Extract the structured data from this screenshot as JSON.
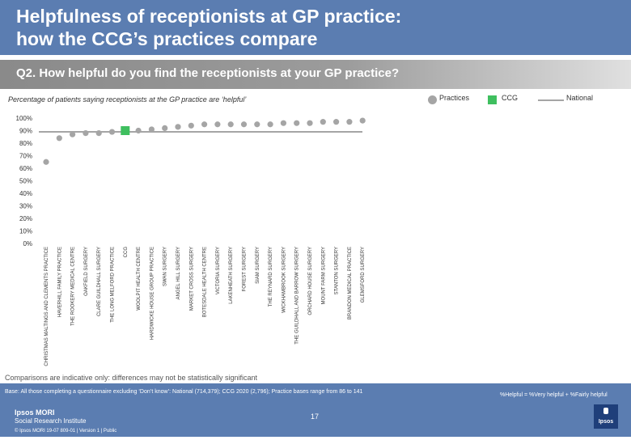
{
  "header": {
    "title_line1": "Helpfulness of receptionists at GP practice:",
    "title_line2": "how the CCG’s practices compare"
  },
  "question": "Q2. How helpful do you find the receptionists at your GP practice?",
  "subtitle": "Percentage of patients saying receptionists at the GP practice are ‘helpful’",
  "legend": {
    "practices": "Practices",
    "ccg": "CCG",
    "national": "National"
  },
  "colors": {
    "header": "#5b7db1",
    "practice_dot": "#a5a5a5",
    "ccg_marker": "#3fbf5f",
    "national_line": "#a5a5a5"
  },
  "chart_data": {
    "type": "scatter",
    "title": "Percentage of patients saying receptionists at the GP practice are ‘helpful’",
    "ylim": [
      0,
      100
    ],
    "yticks": [
      "100%",
      "90%",
      "80%",
      "70%",
      "60%",
      "50%",
      "40%",
      "30%",
      "20%",
      "10%",
      "0%"
    ],
    "national_value": 89,
    "categories": [
      "CHRISTMAS MALTINGS AND CLEMENTS PRACTICE",
      "HAVERHILL FAMILY PRACTICE",
      "THE ROOKERY MEDICAL CENTRE",
      "OAKFIELD SURGERY",
      "CLARE GUILDHALL SURGERY",
      "THE LONG MELFORD PRACTICE",
      "CCG",
      "WOOLPIT HEALTH CENTRE",
      "HARDWICKE HOUSE GROUP PRACTICE",
      "SWAN SURGERY",
      "ANGEL HILL SURGERY",
      "MARKET CROSS SURGERY",
      "BOTESDALE HEALTH CENTRE",
      "VICTORIA SURGERY",
      "LAKENHEATH SURGERY",
      "FOREST SURGERY",
      "SIAM SURGERY",
      "THE REYNARD SURGERY",
      "WICKHAMBROOK SURGERY",
      "THE GUILDHALL AND BARROW SURGERY",
      "ORCHARD HOUSE SURGERY",
      "MOUNT FARM SURGERY",
      "STANTON SURGERY",
      "BRANDON MEDICAL PRACTICE",
      "GLEMSFORD SURGERY"
    ],
    "values": [
      65,
      84,
      87,
      88,
      88,
      89,
      90,
      90,
      91,
      92,
      93,
      94,
      95,
      95,
      95,
      95,
      95,
      95,
      96,
      96,
      96,
      97,
      97,
      97,
      98
    ],
    "ccg_index": 6
  },
  "footer": {
    "note": "Comparisons are indicative only: differences may not be statistically significant",
    "base": "Base: All those completing a questionnaire excluding ‘Don’t know’: National (714,379); CCG 2020 (2,796); Practice bases range from 86 to 141",
    "helpful_def": "%Helpful = %Very helpful + %Fairly helpful",
    "page": "17",
    "brand_line1": "Ipsos MORI",
    "brand_line2": "Social Research Institute",
    "copyright": "© Ipsos MORI      19-07 809-01 | Version 1 | Public",
    "logo_text": "Ipsos"
  }
}
